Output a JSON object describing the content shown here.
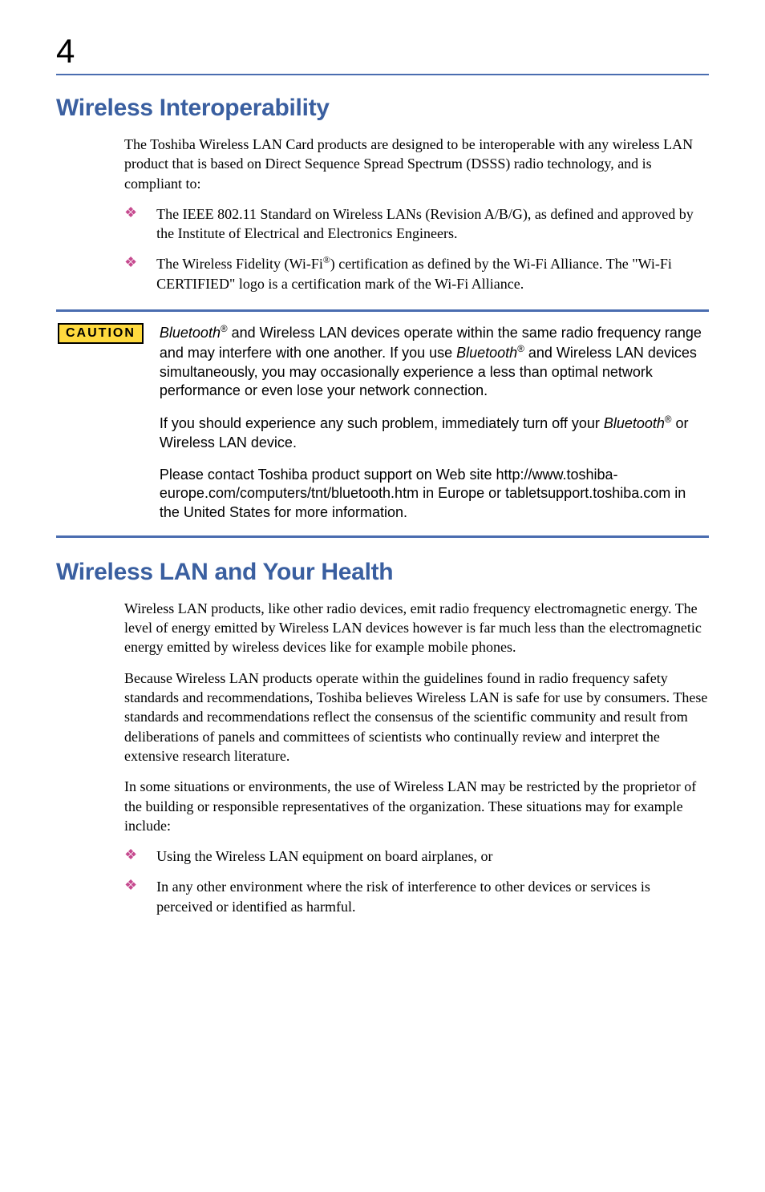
{
  "page_number": "4",
  "sections": [
    {
      "heading": "Wireless Interoperability",
      "paragraphs": [
        "The Toshiba Wireless LAN Card products are designed to be interoperable with any wireless LAN product that is based on Direct Sequence Spread Spectrum (DSSS) radio technology, and is compliant to:"
      ],
      "bullets": [
        "The IEEE 802.11 Standard on Wireless LANs (Revision A/B/G), as defined and approved by the Institute of Electrical and Electronics Engineers.",
        "The Wireless Fidelity (Wi-Fi®) certification as defined by the Wi-Fi Alliance. The \"Wi-Fi CERTIFIED\" logo is a certification mark of the Wi-Fi Alliance."
      ]
    },
    {
      "heading": "Wireless LAN and Your Health",
      "paragraphs": [
        "Wireless LAN products, like other radio devices, emit radio frequency electromagnetic energy. The level of energy emitted by Wireless LAN devices however is far much less than the electromagnetic energy emitted by wireless devices like for example mobile phones.",
        "Because Wireless LAN products operate within the guidelines found in radio frequency safety standards and recommendations, Toshiba believes Wireless LAN is safe for use by consumers. These standards and recommendations reflect the consensus of the scientific community and result from deliberations of panels and committees of scientists who continually review and interpret the extensive research literature.",
        "In some situations or environments, the use of Wireless LAN may be restricted by the proprietor of the building or responsible representatives of the organization. These situations may for example include:"
      ],
      "bullets": [
        "Using the Wireless LAN equipment on board airplanes, or",
        "In any other environment where the risk of interference to other devices or services is perceived or identified as harmful."
      ]
    }
  ],
  "caution": {
    "label": "CAUTION",
    "paragraphs": [
      "Bluetooth® and Wireless LAN devices operate within the same radio frequency range and may interfere with one another. If you use Bluetooth® and Wireless LAN devices simultaneously, you may occasionally experience a less than optimal network performance or even lose your network connection.",
      "If you should experience any such problem, immediately turn off your Bluetooth® or Wireless LAN device.",
      "Please contact Toshiba product support on Web site http://www.toshiba-europe.com/computers/tnt/bluetooth.htm in Europe or tabletsupport.toshiba.com in the United States for more information."
    ]
  },
  "colors": {
    "heading": "#3a5fa0",
    "rule": "#4a6db0",
    "bullet": "#c64a8f",
    "caution_bg": "#ffda3e"
  }
}
